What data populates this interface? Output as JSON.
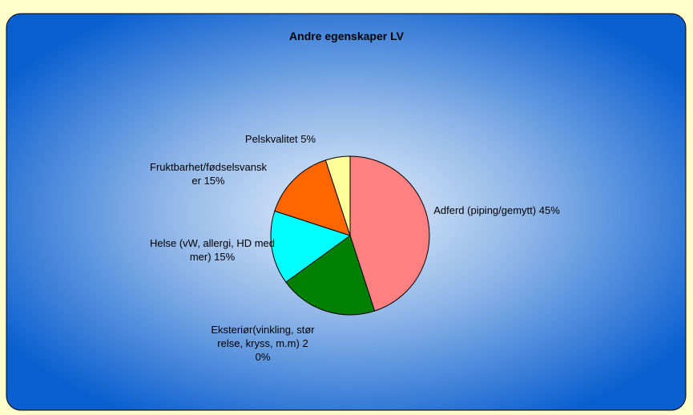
{
  "chart_data": {
    "type": "pie",
    "title": "Andre egenskaper LV",
    "categories": [
      "Adferd (piping/gemytt)",
      "Eksteriør(vinkling, størrelse, kryss, m.m)",
      "Helse (vW, allergi, HD med mer)",
      "Fruktbarhet/fødselsvansker",
      "Pelskvalitet"
    ],
    "values": [
      45,
      20,
      15,
      15,
      5
    ],
    "value_labels": [
      "45%",
      "20%",
      "15%",
      "15%",
      "5%"
    ],
    "colors": [
      "#ff8080",
      "#008000",
      "#00ffff",
      "#ff6600",
      "#ffff99"
    ]
  }
}
